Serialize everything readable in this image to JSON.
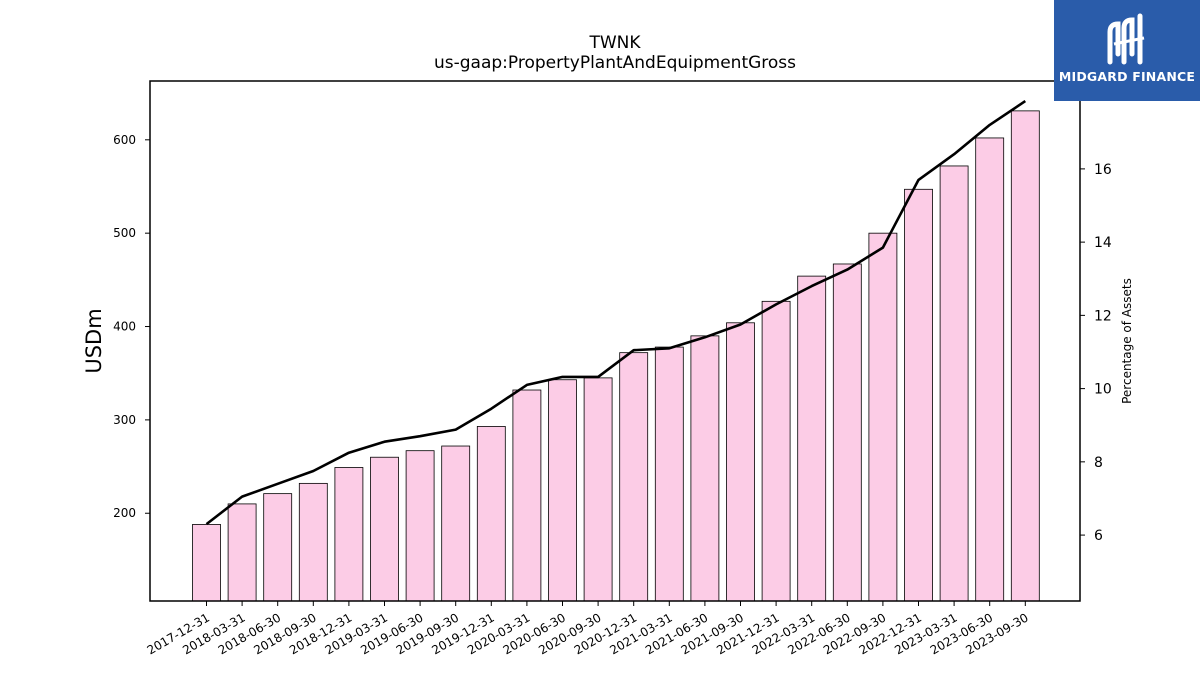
{
  "chart_data": {
    "type": "bar",
    "title": "TWNK",
    "subtitle": "us-gaap:PropertyPlantAndEquipmentGross",
    "ylabel": "USDm",
    "ylabel_right": "Percentage of Assets",
    "categories": [
      "2017-12-31",
      "2018-03-31",
      "2018-06-30",
      "2018-09-30",
      "2018-12-31",
      "2019-03-31",
      "2019-06-30",
      "2019-09-30",
      "2019-12-31",
      "2020-03-31",
      "2020-06-30",
      "2020-09-30",
      "2020-12-31",
      "2021-03-31",
      "2021-06-30",
      "2021-09-30",
      "2021-12-31",
      "2022-03-31",
      "2022-06-30",
      "2022-09-30",
      "2022-12-31",
      "2023-03-31",
      "2023-06-30",
      "2023-09-30"
    ],
    "series": [
      {
        "type": "bar",
        "axis": "left",
        "color": "#fccce6",
        "values": [
          188,
          210,
          221,
          232,
          249,
          260,
          267,
          272,
          293,
          332,
          343,
          345,
          372,
          378,
          390,
          404,
          427,
          454,
          467,
          500,
          547,
          572,
          602,
          631
        ]
      },
      {
        "type": "line",
        "axis": "right",
        "color": "#000000",
        "values": [
          6.3,
          7.05,
          7.4,
          7.75,
          8.25,
          8.55,
          8.7,
          8.88,
          9.45,
          10.1,
          10.32,
          10.32,
          11.05,
          11.1,
          11.4,
          11.75,
          12.3,
          12.8,
          13.25,
          13.85,
          15.7,
          16.4,
          17.2,
          17.85
        ]
      }
    ],
    "ylim": [
      106,
      663
    ],
    "yticks": [
      200,
      300,
      400,
      500,
      600
    ],
    "ylim_right": [
      4.2,
      18.4
    ],
    "yticks_right": [
      6,
      8,
      10,
      12,
      14,
      16
    ],
    "grid": false
  },
  "logo": {
    "text": "MIDGARD FINANCE",
    "color": "#2a5caa"
  }
}
